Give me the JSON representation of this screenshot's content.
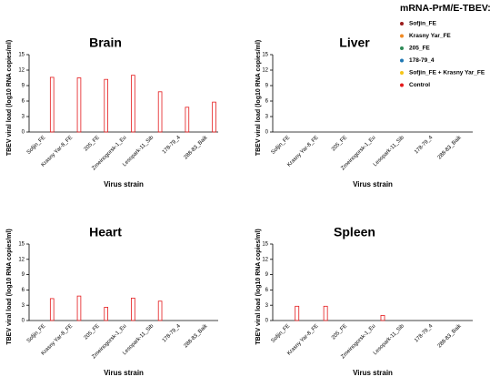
{
  "legend": {
    "title": "mRNA-PrM/E-TBEV:",
    "entries": [
      {
        "name": "Sofjin_FE",
        "color": "#9b1c1c"
      },
      {
        "name": "Krasny Yar_FE",
        "color": "#f08a24"
      },
      {
        "name": "205_FE",
        "color": "#2e8b57"
      },
      {
        "name": "178-79_4",
        "color": "#1f78b4"
      },
      {
        "name": "Sofjin_FE + Krasny Yar_FE",
        "color": "#f5c518"
      },
      {
        "name": "Control",
        "color": "#e41a1c"
      }
    ]
  },
  "chart_data": [
    {
      "type": "bar",
      "title": "Brain",
      "ylabel": "TBEV viral load (log10 RNA copies/ml)",
      "xlabel": "Virus strain",
      "categories": [
        "Sofjin_FE",
        "Krasny Yar-8_FE",
        "205_FE",
        "Zmeinogorsk-1_Eu",
        "Lesopark-11_Sib",
        "178-79_4",
        "288-83_Baik"
      ],
      "ylim": [
        0,
        15
      ],
      "yticks": [
        0,
        3,
        6,
        9,
        12,
        15
      ],
      "series": [
        {
          "values": [
            0,
            0,
            0,
            0,
            0,
            0,
            0
          ]
        },
        {
          "values": [
            0,
            0,
            0,
            0,
            0,
            0,
            0
          ]
        },
        {
          "values": [
            0,
            0,
            0,
            0,
            0,
            0,
            0
          ]
        },
        {
          "values": [
            0,
            0,
            0,
            0,
            0,
            0,
            0
          ]
        },
        {
          "values": [
            0,
            0,
            0,
            0,
            0,
            0,
            0
          ]
        },
        {
          "values": [
            10.6,
            10.5,
            10.2,
            11.0,
            7.8,
            4.8,
            5.8
          ]
        }
      ]
    },
    {
      "type": "bar",
      "title": "Liver",
      "ylabel": "TBEV viral load (log10 RNA copies/ml)",
      "xlabel": "Virus strain",
      "categories": [
        "Sofjin_FE",
        "Krasny Yar-8_FE",
        "205_FE",
        "Zmeinogorsk-1_Eu",
        "Lesopark-11_Sib",
        "178-79_4",
        "288-83_Baik"
      ],
      "ylim": [
        0,
        15
      ],
      "yticks": [
        0,
        3,
        6,
        9,
        12,
        15
      ],
      "series": [
        {
          "values": [
            0,
            0,
            0,
            0,
            0,
            0,
            0
          ]
        },
        {
          "values": [
            0,
            0,
            0,
            0,
            0,
            0,
            0
          ]
        },
        {
          "values": [
            0,
            0,
            0,
            0,
            0,
            0,
            0
          ]
        },
        {
          "values": [
            0,
            0,
            0,
            0,
            0,
            0,
            0
          ]
        },
        {
          "values": [
            0,
            0,
            0,
            0,
            0,
            0,
            0
          ]
        },
        {
          "values": [
            0,
            0,
            0,
            0,
            0,
            0,
            0
          ]
        }
      ]
    },
    {
      "type": "bar",
      "title": "Heart",
      "ylabel": "TBEV viral load (log10 RNA copies/ml)",
      "xlabel": "Virus strain",
      "categories": [
        "Sofjin_FE",
        "Krasny Yar-8_FE",
        "205_FE",
        "Zmeinogorsk-1_Eu",
        "Lesopark-11_Sib",
        "178-79_4",
        "288-83_Baik"
      ],
      "ylim": [
        0,
        15
      ],
      "yticks": [
        0,
        3,
        6,
        9,
        12,
        15
      ],
      "series": [
        {
          "values": [
            0,
            0,
            0,
            0,
            0,
            0,
            0
          ]
        },
        {
          "values": [
            0,
            0,
            0,
            0,
            0,
            0,
            0
          ]
        },
        {
          "values": [
            0,
            0,
            0,
            0,
            0,
            0,
            0
          ]
        },
        {
          "values": [
            0,
            0,
            0,
            0,
            0,
            0,
            0
          ]
        },
        {
          "values": [
            0,
            0,
            0,
            0,
            0,
            0,
            0
          ]
        },
        {
          "values": [
            4.3,
            4.8,
            2.6,
            4.4,
            3.8,
            0,
            0
          ]
        }
      ]
    },
    {
      "type": "bar",
      "title": "Spleen",
      "ylabel": "TBEV viral load (log10 RNA copies/ml)",
      "xlabel": "Virus strain",
      "categories": [
        "Sofjin_FE",
        "Krasny Yar-8_FE",
        "205_FE",
        "Zmeinogorsk-1_Eu",
        "Lesopark-11_Sib",
        "178-79_4",
        "288-83_Baik"
      ],
      "ylim": [
        0,
        15
      ],
      "yticks": [
        0,
        3,
        6,
        9,
        12,
        15
      ],
      "series": [
        {
          "values": [
            0,
            0,
            0,
            0,
            0,
            0,
            0
          ]
        },
        {
          "values": [
            0,
            0,
            0,
            0,
            0,
            0,
            0
          ]
        },
        {
          "values": [
            0,
            0,
            0,
            0,
            0,
            0,
            0
          ]
        },
        {
          "values": [
            0,
            0,
            0,
            0,
            0,
            0,
            0
          ]
        },
        {
          "values": [
            0,
            0,
            0,
            0,
            0,
            0,
            0
          ]
        },
        {
          "values": [
            2.8,
            2.8,
            0,
            1.0,
            0,
            0,
            0
          ]
        }
      ]
    }
  ]
}
